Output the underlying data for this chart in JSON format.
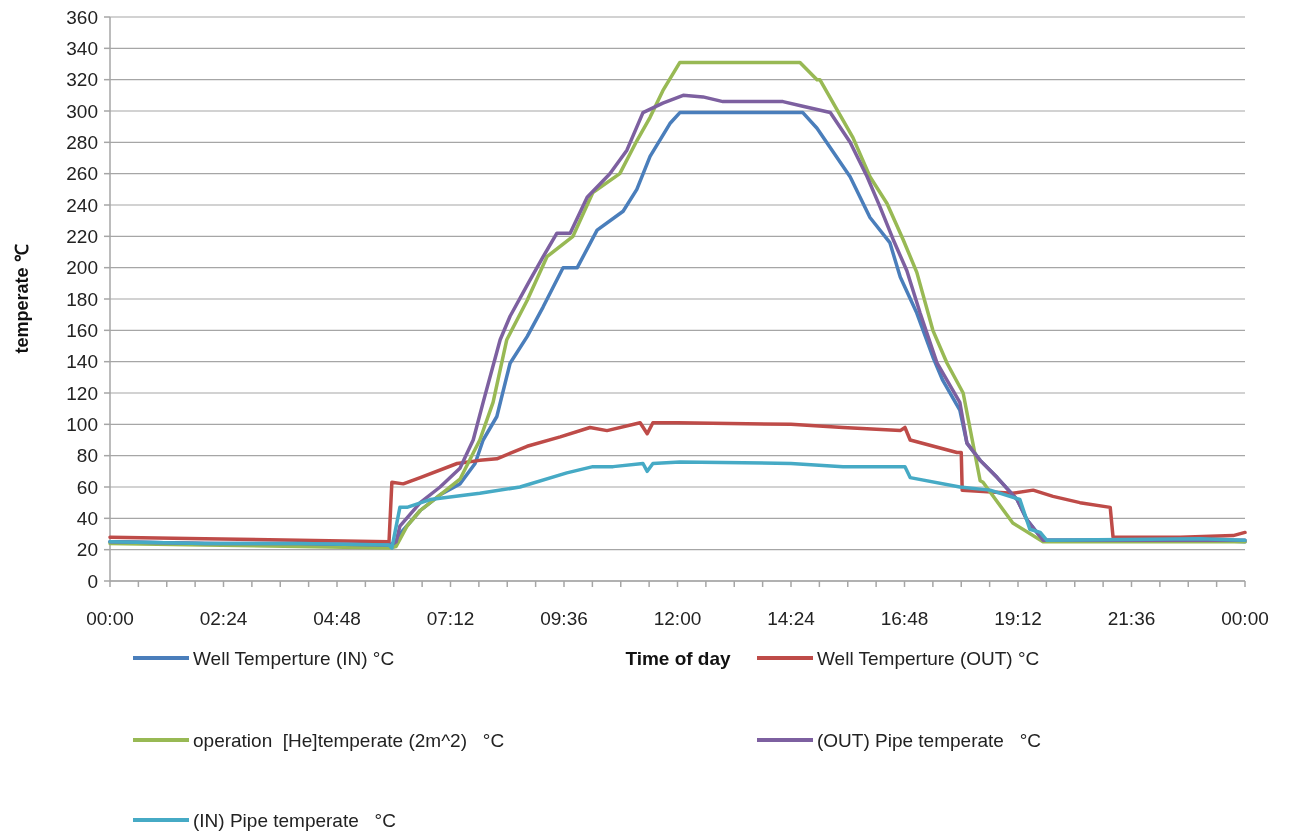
{
  "chart_data": {
    "type": "line",
    "xlabel": "Time of day",
    "ylabel": "temperate ℃",
    "xlim": [
      0,
      24
    ],
    "ylim": [
      0,
      360
    ],
    "xticks": [
      {
        "value": 0,
        "label": "00:00"
      },
      {
        "value": 0.6,
        "label": null
      },
      {
        "value": 1.2,
        "label": null
      },
      {
        "value": 1.8,
        "label": null
      },
      {
        "value": 2.4,
        "label": "02:24"
      },
      {
        "value": 3,
        "label": null
      },
      {
        "value": 3.6,
        "label": null
      },
      {
        "value": 4.2,
        "label": null
      },
      {
        "value": 4.8,
        "label": "04:48"
      },
      {
        "value": 5.4,
        "label": null
      },
      {
        "value": 6,
        "label": null
      },
      {
        "value": 6.6,
        "label": null
      },
      {
        "value": 7.2,
        "label": "07:12"
      },
      {
        "value": 7.8,
        "label": null
      },
      {
        "value": 8.4,
        "label": null
      },
      {
        "value": 9,
        "label": null
      },
      {
        "value": 9.6,
        "label": "09:36"
      },
      {
        "value": 10.2,
        "label": null
      },
      {
        "value": 10.8,
        "label": null
      },
      {
        "value": 11.4,
        "label": null
      },
      {
        "value": 12,
        "label": "12:00"
      },
      {
        "value": 12.6,
        "label": null
      },
      {
        "value": 13.2,
        "label": null
      },
      {
        "value": 13.8,
        "label": null
      },
      {
        "value": 14.4,
        "label": "14:24"
      },
      {
        "value": 15,
        "label": null
      },
      {
        "value": 15.6,
        "label": null
      },
      {
        "value": 16.2,
        "label": null
      },
      {
        "value": 16.8,
        "label": "16:48"
      },
      {
        "value": 17.4,
        "label": null
      },
      {
        "value": 18,
        "label": null
      },
      {
        "value": 18.6,
        "label": null
      },
      {
        "value": 19.2,
        "label": "19:12"
      },
      {
        "value": 19.8,
        "label": null
      },
      {
        "value": 20.4,
        "label": null
      },
      {
        "value": 21,
        "label": null
      },
      {
        "value": 21.6,
        "label": "21:36"
      },
      {
        "value": 22.2,
        "label": null
      },
      {
        "value": 22.8,
        "label": null
      },
      {
        "value": 23.4,
        "label": null
      },
      {
        "value": 24,
        "label": "00:00"
      }
    ],
    "yticks": [
      0,
      20,
      40,
      60,
      80,
      100,
      120,
      140,
      160,
      180,
      200,
      220,
      240,
      260,
      280,
      300,
      320,
      340,
      360
    ],
    "grid": "y",
    "legend": "bottom",
    "marker": "none",
    "line_style": "solid",
    "series": [
      {
        "name": "Well Temperture (IN) °C",
        "color": "#4a7ebb",
        "x": [
          0,
          2,
          4,
          5.9,
          6.01,
          6.13,
          6.56,
          6.98,
          7.4,
          7.72,
          7.89,
          8.18,
          8.46,
          8.82,
          9.16,
          9.58,
          9.88,
          10.3,
          10.85,
          11.14,
          11.42,
          11.84,
          12.05,
          14.65,
          14.95,
          15.65,
          16.07,
          16.49,
          16.71,
          17.06,
          17.4,
          17.61,
          17.97,
          18.12,
          18.4,
          18.76,
          19.18,
          19.39,
          19.73,
          21,
          22.63,
          24
        ],
        "values": [
          25,
          24,
          23,
          22,
          22,
          30,
          45,
          55,
          62,
          75,
          90,
          105,
          139,
          156,
          175,
          200,
          200,
          224,
          236,
          250,
          271,
          292,
          299,
          299,
          289,
          258,
          232,
          216,
          194,
          171,
          143,
          128,
          109,
          88,
          77,
          66,
          52,
          39,
          26,
          26,
          27,
          25
        ]
      },
      {
        "name": "Well Temperture (OUT) °C",
        "color": "#be4b48",
        "x": [
          0,
          2,
          4,
          5.9,
          5.96,
          6.2,
          6.56,
          7.34,
          7.82,
          8.18,
          8.82,
          9.52,
          10.15,
          10.51,
          11.21,
          11.36,
          11.48,
          12,
          14.4,
          15.5,
          16.71,
          16.81,
          16.92,
          17.91,
          18,
          18.02,
          19.09,
          19.52,
          19.94,
          20.51,
          21.15,
          21.21,
          22.63,
          23.75,
          24
        ],
        "values": [
          28,
          27,
          26,
          25,
          63,
          62,
          66,
          75,
          77,
          78,
          86,
          92,
          98,
          96,
          101,
          94,
          101,
          101,
          100,
          98,
          96,
          98,
          90,
          82,
          82,
          58,
          56,
          58,
          54,
          50,
          47,
          28,
          28,
          29,
          31
        ]
      },
      {
        "name": "operation  [He]temperate (2m^2)   °C",
        "color": "#98b954",
        "x": [
          0,
          2,
          4,
          5.9,
          6.05,
          6.28,
          6.56,
          6.98,
          7.4,
          7.82,
          8.1,
          8.39,
          8.82,
          9.24,
          9.79,
          10.21,
          10.78,
          11.14,
          11.42,
          11.69,
          12.05,
          14.59,
          14.95,
          15.01,
          15.71,
          16.07,
          16.43,
          16.77,
          17.06,
          17.4,
          17.7,
          18.04,
          18.4,
          18.46,
          19.09,
          19.73,
          24
        ],
        "values": [
          24,
          23,
          22,
          21,
          22,
          35,
          45,
          55,
          65,
          90,
          114,
          154,
          179,
          207,
          220,
          248,
          260,
          281,
          296,
          313,
          331,
          331,
          320,
          320,
          283,
          258,
          241,
          218,
          197,
          160,
          139,
          120,
          64,
          63,
          37,
          25,
          25
        ]
      },
      {
        "name": "(OUT) Pipe temperate   °C",
        "color": "#7d60a0",
        "x": [
          0,
          2,
          4,
          5.9,
          6.05,
          6.13,
          6.56,
          6.98,
          7.4,
          7.68,
          7.89,
          8.25,
          8.46,
          8.88,
          9.16,
          9.45,
          9.73,
          10.09,
          10.57,
          10.93,
          11.27,
          11.69,
          12.12,
          12.54,
          12.96,
          14.23,
          14.65,
          15.23,
          15.65,
          16.01,
          16.28,
          16.56,
          16.85,
          17.13,
          17.49,
          17.97,
          18.12,
          18.4,
          18.76,
          19.18,
          19.39,
          19.73,
          21,
          24
        ],
        "values": [
          25,
          24,
          24,
          23,
          25,
          35,
          50,
          60,
          72,
          90,
          114,
          154,
          169,
          192,
          207,
          222,
          222,
          245,
          260,
          275,
          299,
          305,
          310,
          309,
          306,
          306,
          303,
          299,
          280,
          258,
          239,
          218,
          198,
          171,
          139,
          114,
          88,
          77,
          66,
          52,
          39,
          26,
          26,
          26
        ]
      },
      {
        "name": "(IN) Pipe temperate   °C",
        "color": "#46aac5",
        "x": [
          0,
          2,
          4,
          5.9,
          5.96,
          6.13,
          6.28,
          6.77,
          7.82,
          8.67,
          9.66,
          10.21,
          10.64,
          11.27,
          11.36,
          11.48,
          12.05,
          14.4,
          15.5,
          16.81,
          16.92,
          17.97,
          18.61,
          19.24,
          19.45,
          19.67,
          19.81,
          23.05,
          24
        ],
        "values": [
          25,
          24,
          24,
          23,
          21,
          47,
          47,
          52,
          56,
          60,
          69,
          73,
          73,
          75,
          70,
          75,
          76,
          75,
          73,
          73,
          66,
          60,
          58,
          52,
          33,
          31,
          26,
          27,
          26
        ]
      }
    ]
  }
}
